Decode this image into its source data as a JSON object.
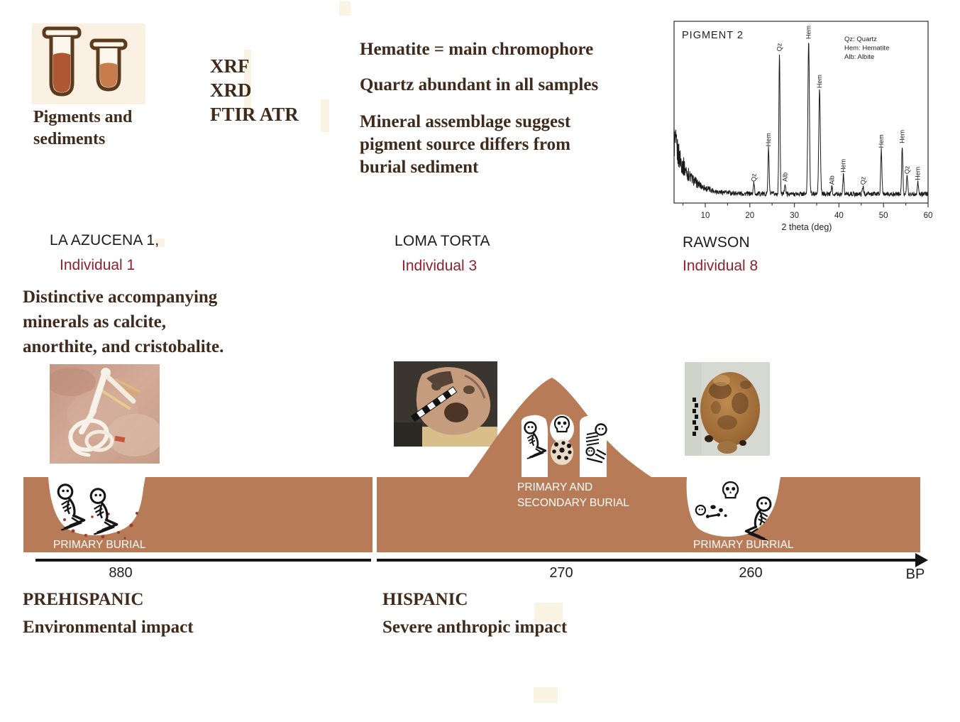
{
  "colors": {
    "ground": "#b87b58",
    "dark_text": "#3f2a1b",
    "site_text": "#1b1b1b",
    "individual_text": "#8e2130",
    "cream": "#faf1e3",
    "tube_outline": "#5c3a1c",
    "tube_dark_fill": "#b05633",
    "tube_light_fill": "#c87c4e",
    "label_on_ground": "#ffffff",
    "timeline": "#141414"
  },
  "icons": {
    "specimen": "two-test-tubes",
    "primary_burial": "crouched-skeleton",
    "secondary_burial": "bone-bundle-with-skull",
    "skull": "skull",
    "scattered_bones": "scattered-bones",
    "timeline_end": "right-arrow"
  },
  "specimen": {
    "label_lines": [
      "Pigments and",
      "sediments"
    ]
  },
  "methods_lines": [
    "XRF",
    "XRD",
    "FTIR ATR"
  ],
  "findings": {
    "f1": "Hematite = main chromophore",
    "f2": "Quartz abundant in all samples",
    "f3_lines": [
      "Mineral assemblage suggest",
      "pigment source differs from",
      "burial sediment"
    ]
  },
  "chart_data": {
    "type": "line",
    "title": "PIGMENT 2",
    "xlabel": "2 theta (deg)",
    "ylabel": "",
    "xlim": [
      3,
      60
    ],
    "xticks": [
      10,
      20,
      30,
      40,
      50,
      60
    ],
    "grid": false,
    "legend_position": "top-right",
    "legend": [
      "Qz: Quartz",
      "Hem: Hematite",
      "Alb: Albite"
    ],
    "description": "XRD diffractogram of PIGMENT 2: relative intensity vs 2-theta with decaying background",
    "background": {
      "baseline": 0.022,
      "start_intensity": 0.35,
      "decay": 3.2,
      "noise": 0.03
    },
    "peaks": [
      {
        "two_theta": 20.9,
        "intensity": 0.07,
        "mineral": "Qz"
      },
      {
        "two_theta": 24.2,
        "intensity": 0.3,
        "mineral": "Hem"
      },
      {
        "two_theta": 26.65,
        "intensity": 0.92,
        "mineral": "Qz"
      },
      {
        "two_theta": 27.9,
        "intensity": 0.07,
        "mineral": "Alb"
      },
      {
        "two_theta": 33.2,
        "intensity": 1.0,
        "mineral": "Hem",
        "width": 0.17
      },
      {
        "two_theta": 35.65,
        "intensity": 0.68,
        "mineral": "Hem",
        "width": 0.17
      },
      {
        "two_theta": 38.4,
        "intensity": 0.05,
        "mineral": "Alb"
      },
      {
        "two_theta": 41.0,
        "intensity": 0.13,
        "mineral": "Hem"
      },
      {
        "two_theta": 45.4,
        "intensity": 0.05,
        "mineral": "Qz"
      },
      {
        "two_theta": 49.5,
        "intensity": 0.29,
        "mineral": "Hem"
      },
      {
        "two_theta": 54.2,
        "intensity": 0.32,
        "mineral": "Hem"
      },
      {
        "two_theta": 55.3,
        "intensity": 0.12,
        "mineral": "Qz"
      },
      {
        "two_theta": 57.7,
        "intensity": 0.08,
        "mineral": "Hem"
      }
    ]
  },
  "sites": [
    {
      "name": "LA AZUCENA 1,",
      "individual": "Individual 1",
      "burial_lines": [
        "PRIMARY BURIAL"
      ],
      "age": "880"
    },
    {
      "name": "LOMA TORTA",
      "individual": "Individual 3",
      "burial_lines": [
        "PRIMARY AND",
        "SECONDARY BURIAL"
      ],
      "age": "270"
    },
    {
      "name": "RAWSON",
      "individual": "Individual 8",
      "burial_lines": [
        "PRIMARY BURRIAL"
      ],
      "age": "260"
    }
  ],
  "note_lines": [
    "Distinctive accompanying",
    "minerals as calcite,",
    "anorthite, and cristobalite."
  ],
  "timeline": {
    "unit": "BP"
  },
  "periods": [
    {
      "name": "PREHISPANIC",
      "impact": "Environmental impact"
    },
    {
      "name": "HISPANIC",
      "impact": "Severe anthropic impact"
    }
  ]
}
